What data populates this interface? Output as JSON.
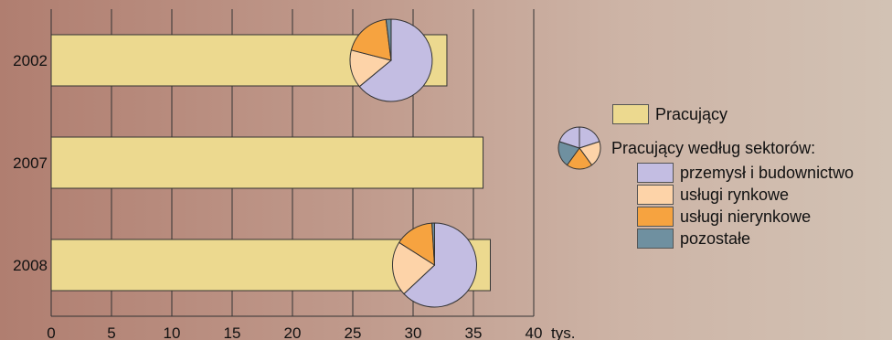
{
  "chart_data": {
    "type": "bar",
    "orientation": "horizontal",
    "categories": [
      "2002",
      "2007",
      "2008"
    ],
    "values": [
      32.8,
      35.8,
      36.4
    ],
    "xlim": [
      0,
      40
    ],
    "xticks": [
      "0",
      "5",
      "10",
      "15",
      "20",
      "25",
      "30",
      "35",
      "40"
    ],
    "xunit": "tys.",
    "bar_color": "#ecd98f",
    "grid": true,
    "pies": [
      {
        "category": "2002",
        "slices": [
          {
            "name": "przemysł i budownictwo",
            "value": 64
          },
          {
            "name": "usługi rynkowe",
            "value": 15
          },
          {
            "name": "usługi nierynkowe",
            "value": 19
          },
          {
            "name": "pozostałe",
            "value": 2
          }
        ]
      },
      {
        "category": "2008",
        "slices": [
          {
            "name": "przemysł i budownictwo",
            "value": 63
          },
          {
            "name": "usługi rynkowe",
            "value": 21
          },
          {
            "name": "usługi nierynkowe",
            "value": 15
          },
          {
            "name": "pozostałe",
            "value": 1
          }
        ]
      }
    ],
    "legend": {
      "position": "right",
      "bar_label": "Pracujący",
      "pie_label": "Pracujący według sektorów:",
      "items": [
        {
          "label": "przemysł i budownictwo",
          "color": "#c3bde2"
        },
        {
          "label": "usługi rynkowe",
          "color": "#fdd3a8"
        },
        {
          "label": "usługi nierynkowe",
          "color": "#f6a340"
        },
        {
          "label": "pozostałe",
          "color": "#6f90a0"
        }
      ]
    }
  }
}
